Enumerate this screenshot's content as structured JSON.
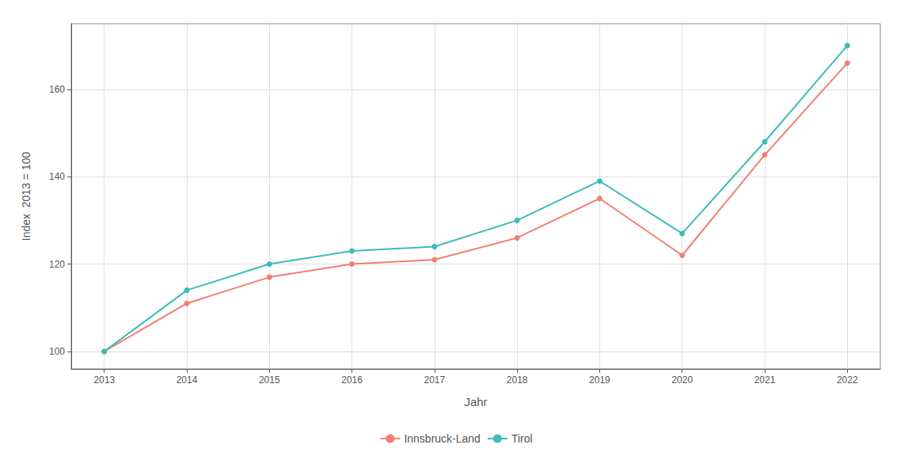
{
  "chart_data": {
    "type": "line",
    "x": [
      2013,
      2014,
      2015,
      2016,
      2017,
      2018,
      2019,
      2020,
      2021,
      2022
    ],
    "series": [
      {
        "name": "Innsbruck-Land",
        "color": "#F08070",
        "marker": "circle",
        "values": [
          100,
          111,
          117,
          120,
          121,
          126,
          135,
          122,
          145,
          166
        ]
      },
      {
        "name": "Tirol",
        "color": "#3DBDB5",
        "marker": "circle",
        "values": [
          100,
          114,
          120,
          123,
          124,
          130,
          139,
          127,
          148,
          170
        ]
      }
    ],
    "xlabel": "Jahr",
    "ylabel": "Index  2013 = 100",
    "xlim": [
      2012.6,
      2022.4
    ],
    "xticks": [
      2013,
      2014,
      2015,
      2016,
      2017,
      2018,
      2019,
      2020,
      2021,
      2022
    ],
    "ylim": [
      96,
      175
    ],
    "yticks": [
      100,
      120,
      140,
      160
    ],
    "grid": true,
    "legend": "bottom"
  }
}
